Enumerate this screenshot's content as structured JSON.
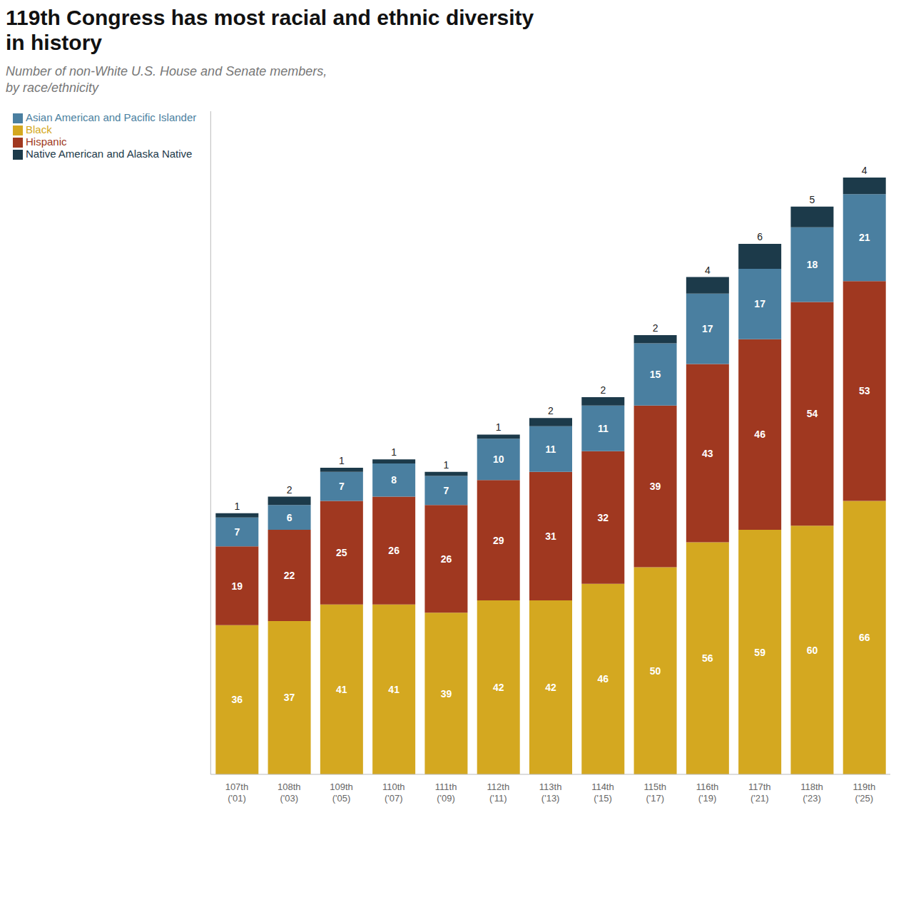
{
  "chart_data": {
    "type": "bar",
    "stacked": true,
    "title": "119th Congress has most racial and ethnic diversity\nin history",
    "subtitle": "Number of non-White U.S. House and Senate members,\nby race/ethnicity",
    "categories": [
      "107th\n('01)",
      "108th\n('03)",
      "109th\n('05)",
      "110th\n('07)",
      "111th\n('09)",
      "112th\n('11)",
      "113th\n('13)",
      "114th\n('15)",
      "115th\n('17)",
      "116th\n('19)",
      "117th\n('21)",
      "118th\n('23)",
      "119th\n('25)"
    ],
    "series": [
      {
        "name": "Black",
        "color": "#D4A820",
        "values": [
          36,
          37,
          41,
          41,
          39,
          42,
          42,
          46,
          50,
          56,
          59,
          60,
          66
        ]
      },
      {
        "name": "Hispanic",
        "color": "#A03820",
        "values": [
          19,
          22,
          25,
          26,
          26,
          29,
          31,
          32,
          39,
          43,
          46,
          54,
          53
        ]
      },
      {
        "name": "Asian American and Pacific Islander",
        "color": "#4A7FA0",
        "values": [
          7,
          6,
          7,
          8,
          7,
          10,
          11,
          11,
          15,
          17,
          17,
          18,
          21
        ]
      },
      {
        "name": "Native American and Alaska Native",
        "color": "#1C3A4A",
        "values": [
          1,
          2,
          1,
          1,
          1,
          1,
          2,
          2,
          2,
          4,
          6,
          5,
          4
        ]
      }
    ],
    "ylim": [
      0,
      160
    ],
    "grid": false,
    "legend": "upper left",
    "data_labels": true,
    "tick_labels": "x"
  }
}
